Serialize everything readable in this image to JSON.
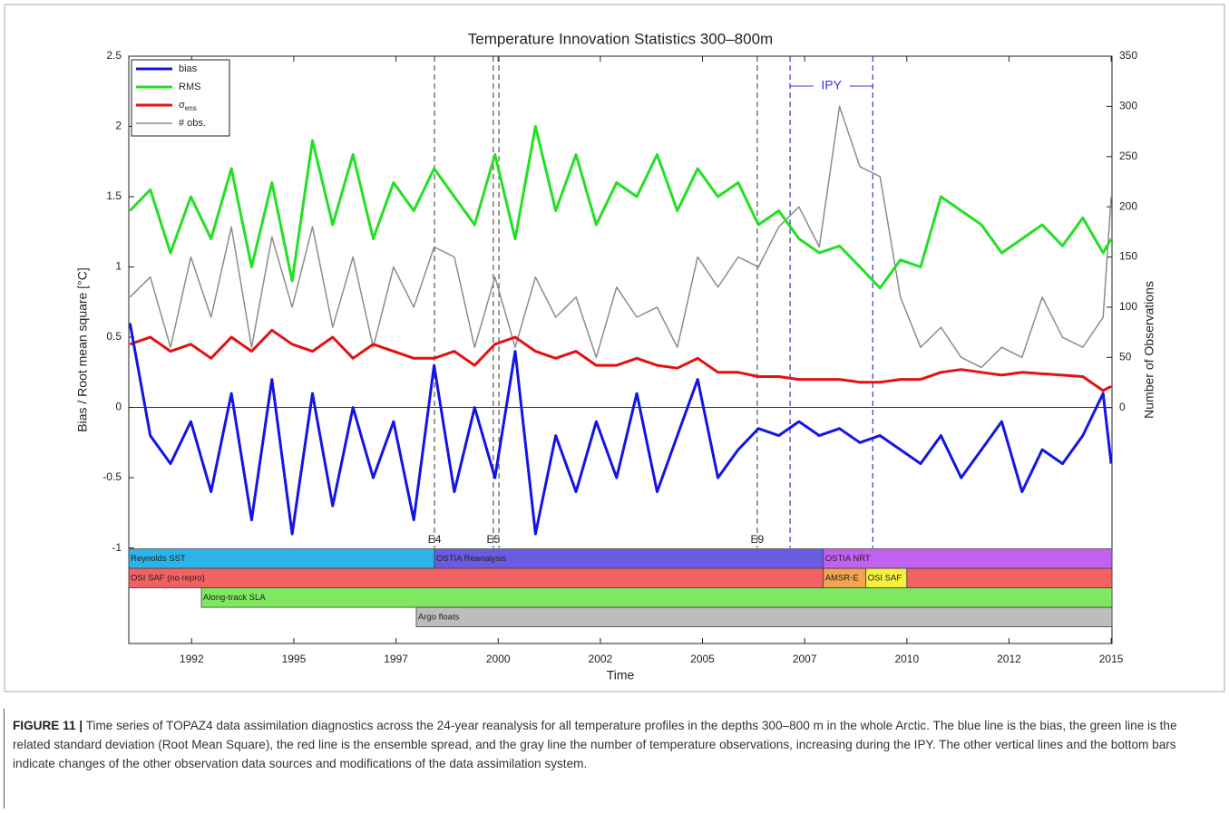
{
  "chart_data": {
    "type": "line",
    "title": "Temperature Innovation Statistics 300–800m",
    "x_label": "Time",
    "y_label": "Bias / Root mean square [°C]",
    "y2_label": "Number of Observations",
    "x": [
      1990.8,
      1991.3,
      1991.8,
      1992.3,
      1992.8,
      1993.3,
      1993.8,
      1994.3,
      1994.8,
      1995.3,
      1995.8,
      1996.3,
      1996.8,
      1997.3,
      1997.8,
      1998.3,
      1998.8,
      1999.3,
      1999.8,
      2000.3,
      2000.8,
      2001.3,
      2001.8,
      2002.3,
      2002.8,
      2003.3,
      2003.8,
      2004.3,
      2004.8,
      2005.3,
      2005.8,
      2006.3,
      2006.8,
      2007.3,
      2007.8,
      2008.3,
      2008.8,
      2009.3,
      2009.8,
      2010.3,
      2010.8,
      2011.3,
      2011.8,
      2012.3,
      2012.8,
      2013.3,
      2013.8,
      2014.3,
      2014.8,
      2015.0
    ],
    "series": [
      {
        "name": "bias",
        "color": "#1414e6",
        "width": 3,
        "values": [
          0.6,
          -0.2,
          -0.4,
          -0.1,
          -0.6,
          0.1,
          -0.8,
          0.2,
          -0.9,
          0.1,
          -0.7,
          0.0,
          -0.5,
          -0.1,
          -0.8,
          0.3,
          -0.6,
          0.0,
          -0.5,
          0.4,
          -0.9,
          -0.2,
          -0.6,
          -0.1,
          -0.5,
          0.1,
          -0.6,
          -0.2,
          0.2,
          -0.5,
          -0.3,
          -0.15,
          -0.2,
          -0.1,
          -0.2,
          -0.15,
          -0.25,
          -0.2,
          -0.3,
          -0.4,
          -0.2,
          -0.5,
          -0.3,
          -0.1,
          -0.6,
          -0.3,
          -0.4,
          -0.2,
          0.1,
          -0.4
        ]
      },
      {
        "name": "RMS",
        "color": "#22e022",
        "width": 3,
        "values": [
          1.4,
          1.55,
          1.1,
          1.5,
          1.2,
          1.7,
          1.0,
          1.6,
          0.9,
          1.9,
          1.3,
          1.8,
          1.2,
          1.6,
          1.4,
          1.7,
          1.5,
          1.3,
          1.8,
          1.2,
          2.0,
          1.4,
          1.8,
          1.3,
          1.6,
          1.5,
          1.8,
          1.4,
          1.7,
          1.5,
          1.6,
          1.3,
          1.4,
          1.2,
          1.1,
          1.15,
          1.0,
          0.85,
          1.05,
          1.0,
          1.5,
          1.4,
          1.3,
          1.1,
          1.2,
          1.3,
          1.15,
          1.35,
          1.1,
          1.2
        ]
      },
      {
        "name": "σ",
        "name_sub": "ens",
        "color": "#e61010",
        "width": 3,
        "values": [
          0.45,
          0.5,
          0.4,
          0.45,
          0.35,
          0.5,
          0.4,
          0.55,
          0.45,
          0.4,
          0.5,
          0.35,
          0.45,
          0.4,
          0.35,
          0.35,
          0.4,
          0.3,
          0.45,
          0.5,
          0.4,
          0.35,
          0.4,
          0.3,
          0.3,
          0.35,
          0.3,
          0.28,
          0.35,
          0.25,
          0.25,
          0.22,
          0.22,
          0.2,
          0.2,
          0.2,
          0.18,
          0.18,
          0.2,
          0.2,
          0.25,
          0.27,
          0.25,
          0.23,
          0.25,
          0.24,
          0.23,
          0.22,
          0.12,
          0.15
        ]
      },
      {
        "name": "# obs.",
        "color": "#8c8c8c",
        "width": 1.5,
        "axis": "y2",
        "values": [
          110,
          130,
          60,
          150,
          90,
          180,
          60,
          170,
          100,
          180,
          80,
          150,
          60,
          140,
          100,
          160,
          150,
          60,
          130,
          60,
          130,
          90,
          110,
          50,
          120,
          90,
          100,
          60,
          150,
          120,
          150,
          140,
          180,
          200,
          160,
          300,
          240,
          230,
          110,
          60,
          80,
          50,
          40,
          60,
          50,
          110,
          70,
          60,
          90,
          210
        ]
      }
    ],
    "xlim": [
      1990.77,
      2015.02
    ],
    "xticks": [
      {
        "value": 1992.32,
        "label": "1992"
      },
      {
        "value": 1994.84,
        "label": "1995"
      },
      {
        "value": 1997.36,
        "label": "1997"
      },
      {
        "value": 1999.88,
        "label": "2000"
      },
      {
        "value": 2002.4,
        "label": "2002"
      },
      {
        "value": 2004.92,
        "label": "2005"
      },
      {
        "value": 2007.44,
        "label": "2007"
      },
      {
        "value": 2009.96,
        "label": "2010"
      },
      {
        "value": 2012.48,
        "label": "2012"
      },
      {
        "value": 2015.0,
        "label": "2015"
      }
    ],
    "ylim": [
      -1.68,
      2.5
    ],
    "yticks": [
      -1,
      -0.5,
      0,
      0.5,
      1,
      1.5,
      2,
      2.5
    ],
    "y2lim": [
      -235,
      350
    ],
    "y2ticks": [
      0,
      50,
      100,
      150,
      200,
      250,
      300,
      350
    ],
    "reference_lines": [
      0
    ],
    "events": [
      {
        "label": "E4",
        "x": 1998.31
      },
      {
        "label": "E5",
        "x": 1999.76
      },
      {
        "x": 1999.9
      },
      {
        "label": "E9",
        "x": 2006.27
      }
    ],
    "ipy": {
      "label": "IPY",
      "start": 2007.08,
      "end": 2009.12,
      "color": "#3333dd"
    },
    "source_rows": [
      [
        {
          "label": "Reynolds SST",
          "start": 1990.77,
          "end": 1998.31,
          "color": "#2bb3ea"
        },
        {
          "label": "OSTIA Reanalysis",
          "start": 1998.31,
          "end": 2007.9,
          "color": "#6a5ce0"
        },
        {
          "label": "OSTIA NRT",
          "start": 2007.9,
          "end": 2015.02,
          "color": "#c260f0"
        }
      ],
      [
        {
          "label": "OSI SAF (no repro)",
          "start": 1990.77,
          "end": 2007.9,
          "color": "#f26262"
        },
        {
          "label": "AMSR-E",
          "start": 2007.9,
          "end": 2008.95,
          "color": "#f5a352"
        },
        {
          "label": "OSI SAF",
          "start": 2008.95,
          "end": 2009.96,
          "color": "#f5f040"
        },
        {
          "start": 2009.96,
          "end": 2015.02,
          "color": "#f26262"
        }
      ],
      [
        {
          "label": "Along-track SLA",
          "start": 1992.56,
          "end": 2015.02,
          "color": "#80e860"
        }
      ],
      [
        {
          "label": "Argo floats",
          "start": 1997.86,
          "end": 2015.02,
          "color": "#bdbdbd"
        }
      ]
    ],
    "legend": "upper left"
  },
  "caption": {
    "label": "FIGURE 11 |",
    "text": "Time series of TOPAZ4 data assimilation diagnostics across the 24-year reanalysis for all temperature profiles in the depths 300–800 m in the whole Arctic. The blue line is the bias, the green line is the related standard deviation (Root Mean Square), the red line is the ensemble spread, and the gray line the number of temperature observations, increasing during the IPY. The other vertical lines and the bottom bars indicate changes of the other observation data sources and modifications of the data assimilation system."
  }
}
